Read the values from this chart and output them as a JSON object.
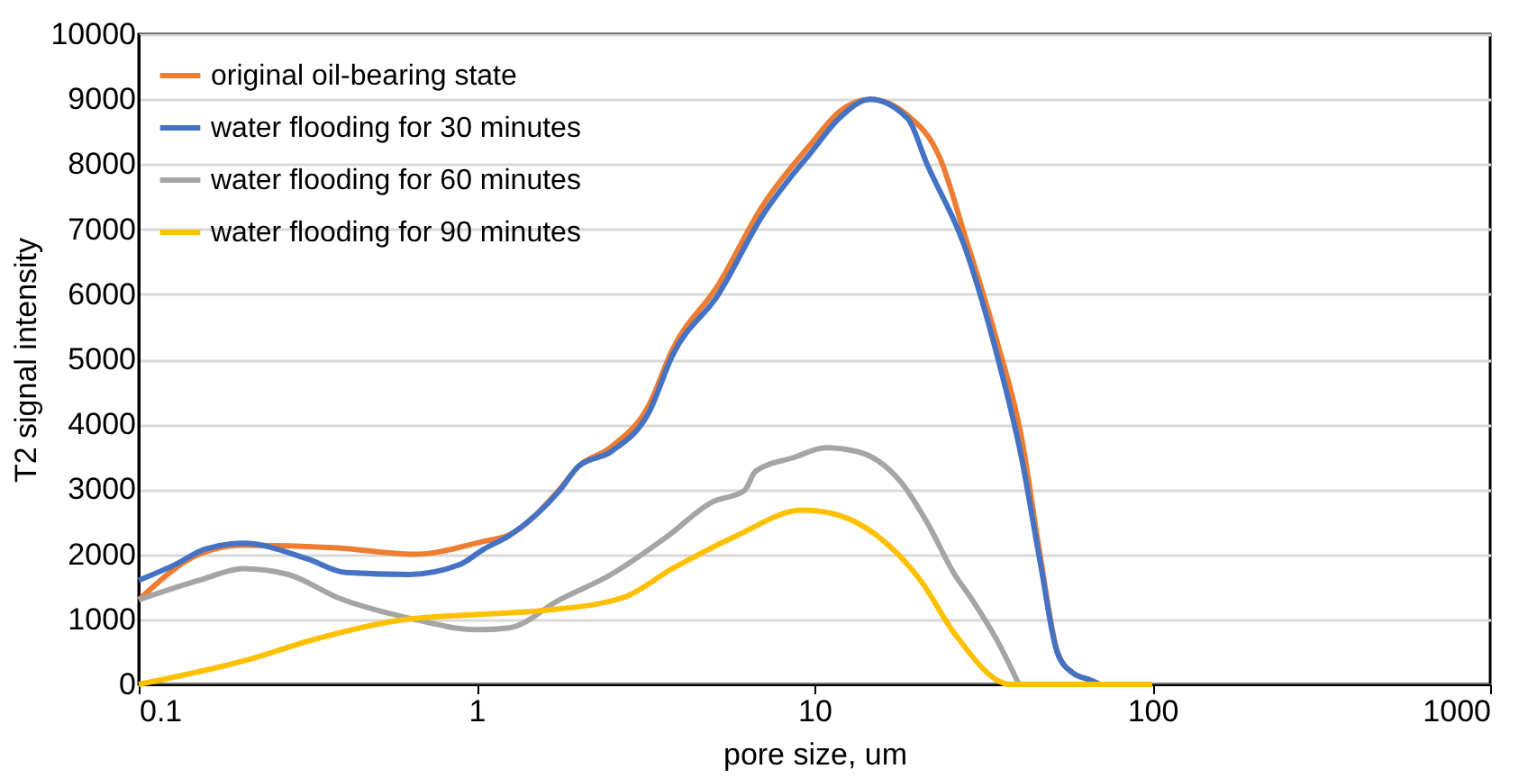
{
  "chart_data": {
    "type": "line",
    "xlabel": "pore size, um",
    "ylabel": "T2 signal intensity",
    "log": "x",
    "xlim": [
      0.1,
      1000
    ],
    "xticks": [
      0.1,
      1,
      10,
      100,
      1000
    ],
    "ylim": [
      0,
      10000
    ],
    "yticks": [
      0,
      1000,
      2000,
      3000,
      4000,
      5000,
      6000,
      7000,
      8000,
      9000,
      10000
    ],
    "grid": "y",
    "legend": "top left",
    "marker": "none",
    "line_style": "solid",
    "series": [
      {
        "name": "original oil-bearing state",
        "color": "#ed7d31",
        "x": [
          0.1,
          0.151,
          0.204,
          0.39,
          0.65,
          1.05,
          1.25,
          1.76,
          2.0,
          2.5,
          3.24,
          3.8,
          5.2,
          7.0,
          9.9,
          11.8,
          14.6,
          18.9,
          23.5,
          27.9,
          34.6,
          41,
          46.5,
          52.4,
          58,
          66,
          70
        ],
        "values": [
          1300,
          2000,
          2140,
          2100,
          2000,
          2200,
          2300,
          3000,
          3350,
          3650,
          4300,
          5150,
          6150,
          7350,
          8350,
          8800,
          9000,
          8750,
          8100,
          6900,
          5300,
          3800,
          2000,
          500,
          180,
          60,
          0
        ]
      },
      {
        "name": "water flooding for 30 minutes",
        "color": "#4472c4",
        "x": [
          0.1,
          0.128,
          0.157,
          0.204,
          0.316,
          0.41,
          0.63,
          0.89,
          1.05,
          1.25,
          1.76,
          2.0,
          2.5,
          3.24,
          3.8,
          5.2,
          7.0,
          9.9,
          11.8,
          14.6,
          18.9,
          21.5,
          27.9,
          34.6,
          41,
          46.5,
          52.4,
          58,
          66,
          70
        ],
        "values": [
          1600,
          1840,
          2080,
          2170,
          1930,
          1720,
          1690,
          1840,
          2080,
          2290,
          2980,
          3350,
          3580,
          4190,
          5060,
          6000,
          7200,
          8220,
          8700,
          9000,
          8700,
          8010,
          6720,
          5090,
          3490,
          1900,
          480,
          180,
          60,
          0
        ]
      },
      {
        "name": "water flooding for 60 minutes",
        "color": "#a5a5a5",
        "x": [
          0.1,
          0.151,
          0.204,
          0.277,
          0.39,
          0.63,
          1.01,
          1.25,
          1.76,
          2.5,
          3.7,
          4.96,
          6.2,
          6.7,
          8.7,
          10.8,
          13.4,
          18.1,
          21.5,
          26,
          29.3,
          34.6,
          40.3
        ],
        "values": [
          1300,
          1600,
          1780,
          1690,
          1330,
          1020,
          840,
          870,
          1300,
          1690,
          2290,
          2800,
          2980,
          3280,
          3490,
          3640,
          3580,
          3100,
          2500,
          1690,
          1300,
          690,
          0
        ]
      },
      {
        "name": "water flooding for 90 minutes",
        "color": "#ffc000",
        "x": [
          0.1,
          0.214,
          0.33,
          0.6,
          1.05,
          1.6,
          2.7,
          3.8,
          5.9,
          9.2,
          10.8,
          15.3,
          20.6,
          26,
          38,
          100
        ],
        "values": [
          0,
          390,
          690,
          990,
          1080,
          1140,
          1330,
          1780,
          2290,
          2680,
          2650,
          2290,
          1600,
          780,
          0,
          0
        ]
      }
    ]
  }
}
